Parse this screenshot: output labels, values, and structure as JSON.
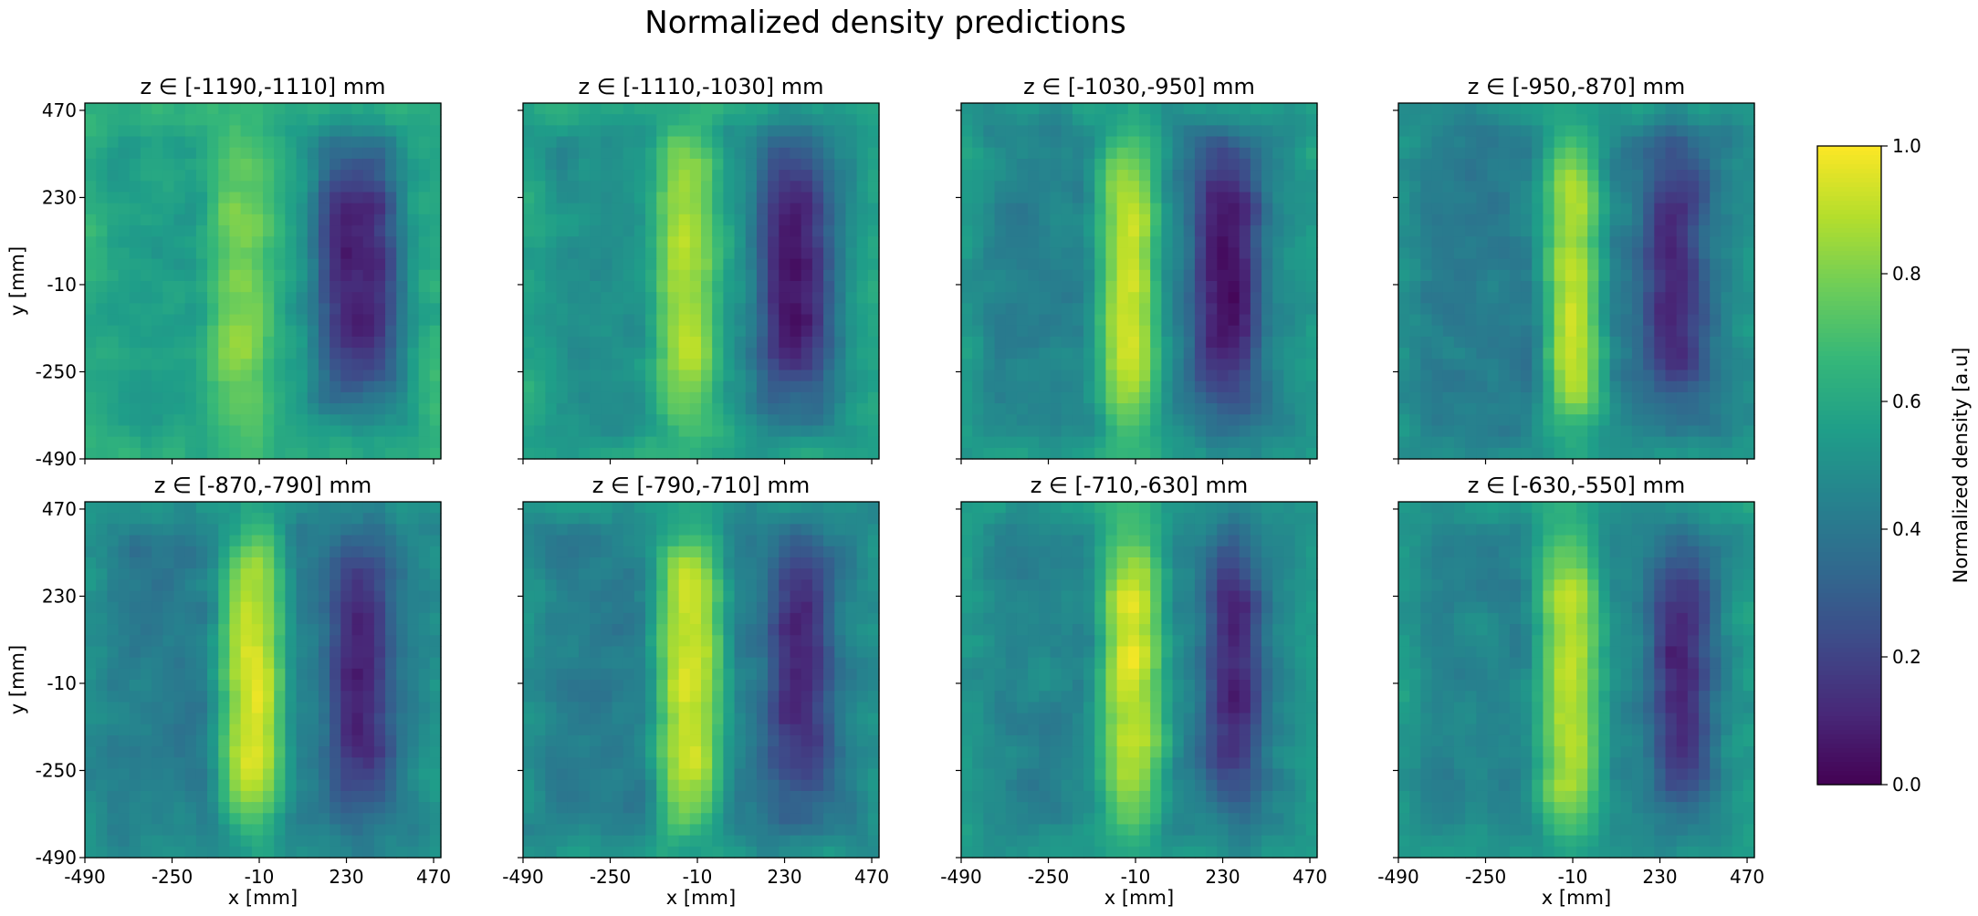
{
  "figure_title": "Normalized density predictions",
  "colorbar": {
    "label": "Normalized density [a.u]",
    "range": [
      0.0,
      1.0
    ],
    "ticks": [
      0.0,
      0.2,
      0.4,
      0.6,
      0.8,
      1.0
    ],
    "tick_labels": [
      "0.0",
      "0.2",
      "0.4",
      "0.6",
      "0.8",
      "1.0"
    ],
    "colormap": "viridis"
  },
  "chart_data": {
    "type": "heatmap",
    "layout": "2 rows x 4 columns",
    "xlabel": "x [mm]",
    "ylabel": "y [mm]",
    "xlim": [
      -490,
      490
    ],
    "ylim": [
      -490,
      490
    ],
    "x_ticks": [
      -490,
      -250,
      -10,
      230,
      470
    ],
    "y_ticks": [
      -490,
      -250,
      -10,
      230,
      470
    ],
    "x_tick_labels": [
      "-490",
      "-250",
      "-10",
      "230",
      "470"
    ],
    "y_tick_labels": [
      "-490",
      "-250",
      "-10",
      "230",
      "470"
    ],
    "grid_cells": 32,
    "shared_x": true,
    "shared_y": true,
    "value_range": [
      0.0,
      1.0
    ],
    "panels": [
      {
        "title": "z ∈ [-1190,-1110] mm",
        "z_min": -1190,
        "z_max": -1110,
        "features": {
          "high_band_x": -60,
          "high_band_width": 180,
          "high_strength": 0.8,
          "low_band_x": 260,
          "low_band_width": 220,
          "low_strength": 0.08,
          "background": 0.55
        }
      },
      {
        "title": "z ∈ [-1110,-1030] mm",
        "z_min": -1110,
        "z_max": -1030,
        "features": {
          "high_band_x": -40,
          "high_band_width": 170,
          "high_strength": 0.88,
          "low_band_x": 260,
          "low_band_width": 200,
          "low_strength": 0.08,
          "background": 0.5
        }
      },
      {
        "title": "z ∈ [-1030,-950] mm",
        "z_min": -1030,
        "z_max": -950,
        "features": {
          "high_band_x": -30,
          "high_band_width": 160,
          "high_strength": 0.92,
          "low_band_x": 240,
          "low_band_width": 180,
          "low_strength": 0.05,
          "background": 0.45
        }
      },
      {
        "title": "z ∈ [-950,-870] mm",
        "z_min": -950,
        "z_max": -870,
        "features": {
          "high_band_x": -10,
          "high_band_width": 150,
          "high_strength": 0.92,
          "low_band_x": 270,
          "low_band_width": 160,
          "low_strength": 0.12,
          "background": 0.42
        }
      },
      {
        "title": "z ∈ [-870,-790] mm",
        "z_min": -870,
        "z_max": -790,
        "features": {
          "high_band_x": -30,
          "high_band_width": 170,
          "high_strength": 0.95,
          "low_band_x": 270,
          "low_band_width": 160,
          "low_strength": 0.1,
          "background": 0.42
        }
      },
      {
        "title": "z ∈ [-790,-710] mm",
        "z_min": -790,
        "z_max": -710,
        "features": {
          "high_band_x": -30,
          "high_band_width": 180,
          "high_strength": 0.95,
          "low_band_x": 270,
          "low_band_width": 160,
          "low_strength": 0.1,
          "background": 0.42
        }
      },
      {
        "title": "z ∈ [-710,-630] mm",
        "z_min": -710,
        "z_max": -630,
        "features": {
          "high_band_x": -20,
          "high_band_width": 170,
          "high_strength": 0.93,
          "low_band_x": 260,
          "low_band_width": 140,
          "low_strength": 0.08,
          "background": 0.45
        }
      },
      {
        "title": "z ∈ [-630,-550] mm",
        "z_min": -630,
        "z_max": -550,
        "features": {
          "high_band_x": -20,
          "high_band_width": 170,
          "high_strength": 0.9,
          "low_band_x": 290,
          "low_band_width": 150,
          "low_strength": 0.1,
          "background": 0.45
        }
      }
    ]
  }
}
